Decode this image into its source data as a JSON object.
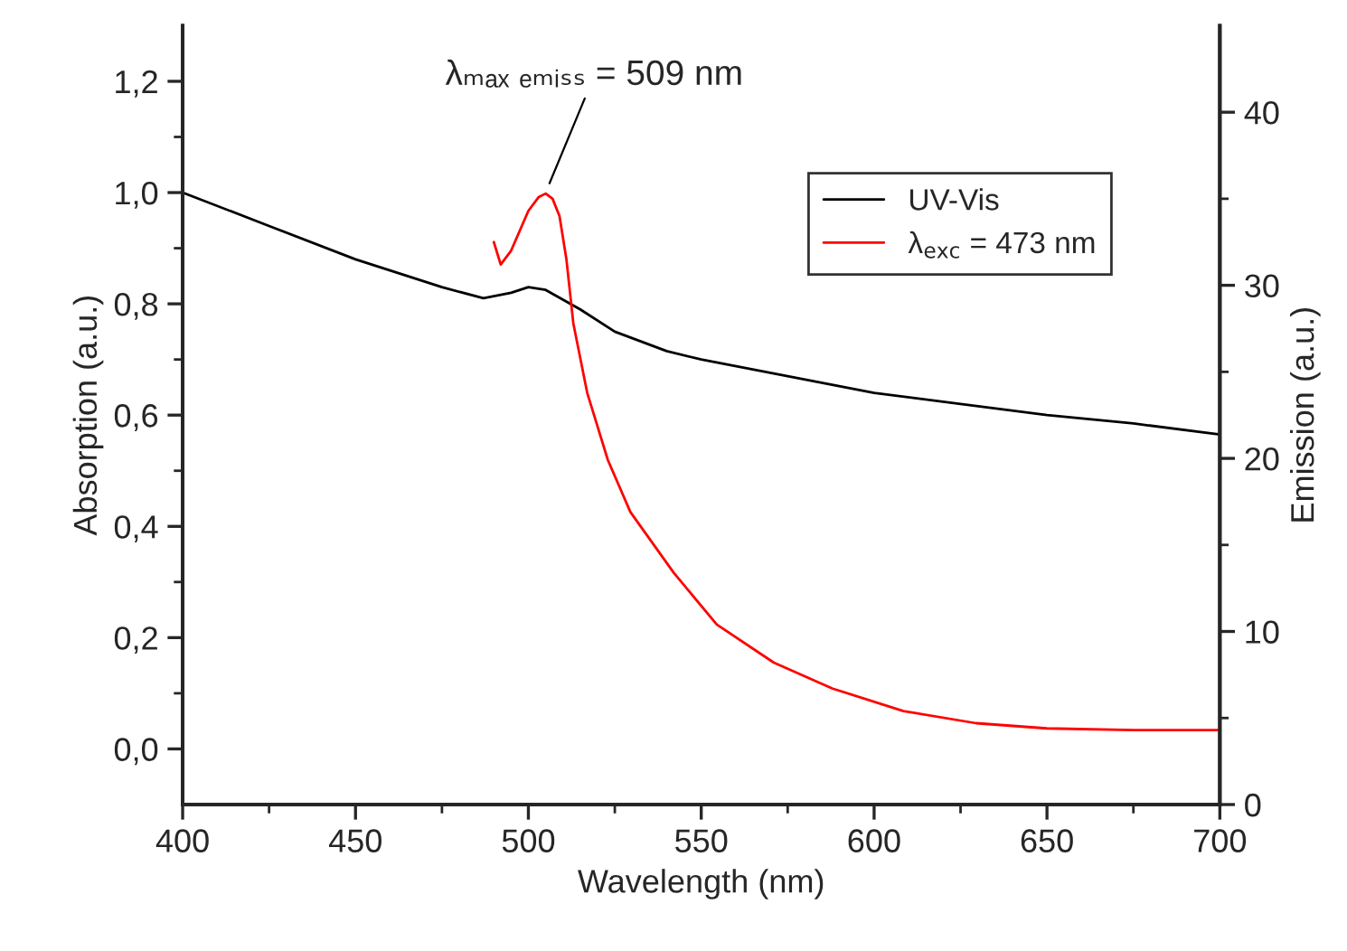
{
  "chart_data": {
    "type": "line",
    "xlabel": "Wavelength (nm)",
    "ylabel": "Absorption (a.u.)",
    "y2label": "Emission (a.u.)",
    "xlim": [
      400,
      700
    ],
    "xticks": [
      400,
      450,
      500,
      550,
      600,
      650,
      700
    ],
    "ylim": [
      -0.1,
      1.3
    ],
    "yticks": [
      {
        "value": 0.0,
        "label": "0,0"
      },
      {
        "value": 0.2,
        "label": "0,2"
      },
      {
        "value": 0.4,
        "label": "0,4"
      },
      {
        "value": 0.6,
        "label": "0,6"
      },
      {
        "value": 0.8,
        "label": "0,8"
      },
      {
        "value": 1.0,
        "label": "1,0"
      },
      {
        "value": 1.2,
        "label": "1,2"
      }
    ],
    "y2lim": [
      0,
      45
    ],
    "y2ticks": [
      0,
      10,
      20,
      30,
      40
    ],
    "grid": false,
    "legend": "top right",
    "marker": "none",
    "line_style": "solid",
    "annotations": [
      {
        "text": "λₘₐₓ ₑₘᵢₛₛ = 509 nm",
        "x": 505,
        "y": 1.0
      }
    ],
    "series": [
      {
        "name": "UV-Vis",
        "color": "#000000",
        "x": [
          400,
          425,
          450,
          475,
          487,
          495,
          500,
          505,
          515,
          525,
          540,
          550,
          575,
          600,
          625,
          650,
          675,
          700
        ],
        "values": [
          1.0,
          0.94,
          0.88,
          0.83,
          0.81,
          0.82,
          0.83,
          0.825,
          0.79,
          0.75,
          0.715,
          0.7,
          0.67,
          0.64,
          0.62,
          0.6,
          0.585,
          0.565
        ]
      },
      {
        "name": "λ$_{exc}$ = 473 nm",
        "color": "#ff0000",
        "axis": "y2",
        "x": [
          490,
          492,
          495,
          500,
          503,
          505,
          507,
          509,
          511,
          513,
          517,
          523,
          529.5,
          542,
          554.5,
          571,
          588,
          608.5,
          629.5,
          650,
          675,
          700
        ],
        "values": [
          32.5,
          31.2,
          32.0,
          34.3,
          35.1,
          35.3,
          35.0,
          34.0,
          31.5,
          27.8,
          23.8,
          19.9,
          16.9,
          13.4,
          10.4,
          8.2,
          6.7,
          5.4,
          4.7,
          4.4,
          4.3,
          4.3
        ]
      }
    ]
  }
}
